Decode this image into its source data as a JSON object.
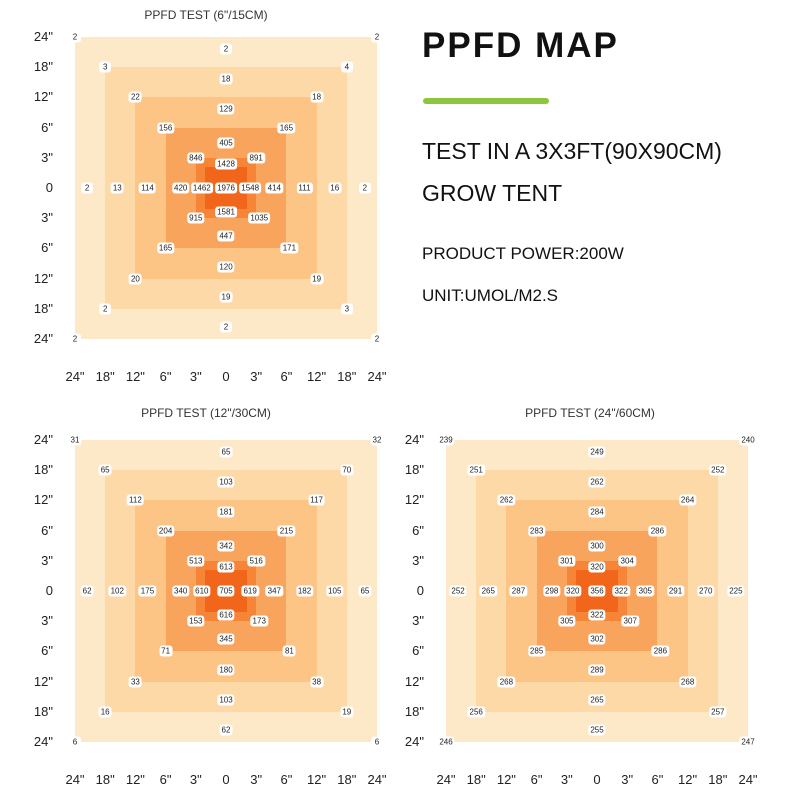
{
  "info": {
    "title": "PPFD MAP",
    "line1": "TEST IN A 3X3FT(90X90CM)",
    "line2": "GROW TENT",
    "line3": "PRODUCT POWER:200W",
    "line4": "UNIT:UMOL/M2.S"
  },
  "colors": {
    "rings": [
      "#fde9c8",
      "#fdd9a8",
      "#fcc485",
      "#f9a45d",
      "#f68537",
      "#f1661a"
    ],
    "accent": "#8cc63f"
  },
  "chart_data": [
    {
      "type": "heatmap",
      "title": "PPFD TEST (6\"/15CM)",
      "x_ticks": [
        "24\"",
        "18\"",
        "12\"",
        "6\"",
        "3\"",
        "0",
        "3\"",
        "6\"",
        "12\"",
        "18\"",
        "24\""
      ],
      "y_ticks": [
        "24\"",
        "18\"",
        "12\"",
        "6\"",
        "3\"",
        "0",
        "3\"",
        "6\"",
        "12\"",
        "18\"",
        "24\""
      ],
      "points": [
        {
          "x": 0,
          "y": 0,
          "v": "2"
        },
        {
          "x": 10,
          "y": 0,
          "v": "2"
        },
        {
          "x": 5,
          "y": 0.4,
          "v": "2"
        },
        {
          "x": 1,
          "y": 1,
          "v": "3"
        },
        {
          "x": 9,
          "y": 1,
          "v": "4"
        },
        {
          "x": 5,
          "y": 1.4,
          "v": "18"
        },
        {
          "x": 2,
          "y": 2,
          "v": "22"
        },
        {
          "x": 8,
          "y": 2,
          "v": "18"
        },
        {
          "x": 5,
          "y": 2.4,
          "v": "129"
        },
        {
          "x": 3,
          "y": 3,
          "v": "156"
        },
        {
          "x": 7,
          "y": 3,
          "v": "165"
        },
        {
          "x": 5,
          "y": 3.5,
          "v": "405"
        },
        {
          "x": 4,
          "y": 4,
          "v": "846"
        },
        {
          "x": 5,
          "y": 4.2,
          "v": "1428"
        },
        {
          "x": 6,
          "y": 4,
          "v": "891"
        },
        {
          "x": 0.4,
          "y": 5,
          "v": "2"
        },
        {
          "x": 1.4,
          "y": 5,
          "v": "13"
        },
        {
          "x": 2.4,
          "y": 5,
          "v": "114"
        },
        {
          "x": 3.5,
          "y": 5,
          "v": "420"
        },
        {
          "x": 4.2,
          "y": 5,
          "v": "1462"
        },
        {
          "x": 5,
          "y": 5,
          "v": "1976"
        },
        {
          "x": 5.8,
          "y": 5,
          "v": "1548"
        },
        {
          "x": 6.6,
          "y": 5,
          "v": "414"
        },
        {
          "x": 7.6,
          "y": 5,
          "v": "111"
        },
        {
          "x": 8.6,
          "y": 5,
          "v": "16"
        },
        {
          "x": 9.6,
          "y": 5,
          "v": "2"
        },
        {
          "x": 4,
          "y": 6,
          "v": "915"
        },
        {
          "x": 5,
          "y": 5.8,
          "v": "1581"
        },
        {
          "x": 6.1,
          "y": 6,
          "v": "1035"
        },
        {
          "x": 5,
          "y": 6.6,
          "v": "447"
        },
        {
          "x": 3,
          "y": 7,
          "v": "165"
        },
        {
          "x": 7.1,
          "y": 7,
          "v": "171"
        },
        {
          "x": 5,
          "y": 7.6,
          "v": "120"
        },
        {
          "x": 2,
          "y": 8,
          "v": "20"
        },
        {
          "x": 8,
          "y": 8,
          "v": "19"
        },
        {
          "x": 5,
          "y": 8.6,
          "v": "19"
        },
        {
          "x": 1,
          "y": 9,
          "v": "2"
        },
        {
          "x": 9,
          "y": 9,
          "v": "3"
        },
        {
          "x": 5,
          "y": 9.6,
          "v": "2"
        },
        {
          "x": 0,
          "y": 10,
          "v": "2"
        },
        {
          "x": 10,
          "y": 10,
          "v": "2"
        }
      ]
    },
    {
      "type": "heatmap",
      "title": "PPFD TEST (12\"/30CM)",
      "x_ticks": [
        "24\"",
        "18\"",
        "12\"",
        "6\"",
        "3\"",
        "0",
        "3\"",
        "6\"",
        "12\"",
        "18\"",
        "24\""
      ],
      "y_ticks": [
        "24\"",
        "18\"",
        "12\"",
        "6\"",
        "3\"",
        "0",
        "3\"",
        "6\"",
        "12\"",
        "18\"",
        "24\""
      ],
      "points": [
        {
          "x": 0,
          "y": 0,
          "v": "31"
        },
        {
          "x": 10,
          "y": 0,
          "v": "32"
        },
        {
          "x": 5,
          "y": 0.4,
          "v": "65"
        },
        {
          "x": 1,
          "y": 1,
          "v": "65"
        },
        {
          "x": 9,
          "y": 1,
          "v": "70"
        },
        {
          "x": 5,
          "y": 1.4,
          "v": "103"
        },
        {
          "x": 2,
          "y": 2,
          "v": "112"
        },
        {
          "x": 8,
          "y": 2,
          "v": "117"
        },
        {
          "x": 5,
          "y": 2.4,
          "v": "181"
        },
        {
          "x": 3,
          "y": 3,
          "v": "204"
        },
        {
          "x": 7,
          "y": 3,
          "v": "215"
        },
        {
          "x": 5,
          "y": 3.5,
          "v": "342"
        },
        {
          "x": 4,
          "y": 4,
          "v": "513"
        },
        {
          "x": 5,
          "y": 4.2,
          "v": "613"
        },
        {
          "x": 6,
          "y": 4,
          "v": "516"
        },
        {
          "x": 0.4,
          "y": 5,
          "v": "62"
        },
        {
          "x": 1.4,
          "y": 5,
          "v": "102"
        },
        {
          "x": 2.4,
          "y": 5,
          "v": "175"
        },
        {
          "x": 3.5,
          "y": 5,
          "v": "340"
        },
        {
          "x": 4.2,
          "y": 5,
          "v": "610"
        },
        {
          "x": 5,
          "y": 5,
          "v": "705"
        },
        {
          "x": 5.8,
          "y": 5,
          "v": "619"
        },
        {
          "x": 6.6,
          "y": 5,
          "v": "347"
        },
        {
          "x": 7.6,
          "y": 5,
          "v": "182"
        },
        {
          "x": 8.6,
          "y": 5,
          "v": "105"
        },
        {
          "x": 9.6,
          "y": 5,
          "v": "65"
        },
        {
          "x": 4,
          "y": 6,
          "v": "153"
        },
        {
          "x": 5,
          "y": 5.8,
          "v": "616"
        },
        {
          "x": 6.1,
          "y": 6,
          "v": "173"
        },
        {
          "x": 5,
          "y": 6.6,
          "v": "345"
        },
        {
          "x": 3,
          "y": 7,
          "v": "71"
        },
        {
          "x": 7.1,
          "y": 7,
          "v": "81"
        },
        {
          "x": 5,
          "y": 7.6,
          "v": "180"
        },
        {
          "x": 2,
          "y": 8,
          "v": "33"
        },
        {
          "x": 8,
          "y": 8,
          "v": "38"
        },
        {
          "x": 5,
          "y": 8.6,
          "v": "103"
        },
        {
          "x": 1,
          "y": 9,
          "v": "16"
        },
        {
          "x": 9,
          "y": 9,
          "v": "19"
        },
        {
          "x": 5,
          "y": 9.6,
          "v": "62"
        },
        {
          "x": 0,
          "y": 10,
          "v": "6"
        },
        {
          "x": 10,
          "y": 10,
          "v": "6"
        }
      ]
    },
    {
      "type": "heatmap",
      "title": "PPFD TEST (24\"/60CM)",
      "x_ticks": [
        "24\"",
        "18\"",
        "12\"",
        "6\"",
        "3\"",
        "0",
        "3\"",
        "6\"",
        "12\"",
        "18\"",
        "24\""
      ],
      "y_ticks": [
        "24\"",
        "18\"",
        "12\"",
        "6\"",
        "3\"",
        "0",
        "3\"",
        "6\"",
        "12\"",
        "18\"",
        "24\""
      ],
      "points": [
        {
          "x": 0,
          "y": 0,
          "v": "239"
        },
        {
          "x": 10,
          "y": 0,
          "v": "240"
        },
        {
          "x": 5,
          "y": 0.4,
          "v": "249"
        },
        {
          "x": 1,
          "y": 1,
          "v": "251"
        },
        {
          "x": 9,
          "y": 1,
          "v": "252"
        },
        {
          "x": 5,
          "y": 1.4,
          "v": "262"
        },
        {
          "x": 2,
          "y": 2,
          "v": "262"
        },
        {
          "x": 8,
          "y": 2,
          "v": "264"
        },
        {
          "x": 5,
          "y": 2.4,
          "v": "284"
        },
        {
          "x": 3,
          "y": 3,
          "v": "283"
        },
        {
          "x": 7,
          "y": 3,
          "v": "286"
        },
        {
          "x": 5,
          "y": 3.5,
          "v": "300"
        },
        {
          "x": 4,
          "y": 4,
          "v": "301"
        },
        {
          "x": 5,
          "y": 4.2,
          "v": "320"
        },
        {
          "x": 6,
          "y": 4,
          "v": "304"
        },
        {
          "x": 0.4,
          "y": 5,
          "v": "252"
        },
        {
          "x": 1.4,
          "y": 5,
          "v": "265"
        },
        {
          "x": 2.4,
          "y": 5,
          "v": "287"
        },
        {
          "x": 3.5,
          "y": 5,
          "v": "298"
        },
        {
          "x": 4.2,
          "y": 5,
          "v": "320"
        },
        {
          "x": 5,
          "y": 5,
          "v": "356"
        },
        {
          "x": 5.8,
          "y": 5,
          "v": "322"
        },
        {
          "x": 6.6,
          "y": 5,
          "v": "305"
        },
        {
          "x": 7.6,
          "y": 5,
          "v": "291"
        },
        {
          "x": 8.6,
          "y": 5,
          "v": "270"
        },
        {
          "x": 9.6,
          "y": 5,
          "v": "225"
        },
        {
          "x": 4,
          "y": 6,
          "v": "305"
        },
        {
          "x": 5,
          "y": 5.8,
          "v": "322"
        },
        {
          "x": 6.1,
          "y": 6,
          "v": "307"
        },
        {
          "x": 5,
          "y": 6.6,
          "v": "302"
        },
        {
          "x": 3,
          "y": 7,
          "v": "285"
        },
        {
          "x": 7.1,
          "y": 7,
          "v": "286"
        },
        {
          "x": 5,
          "y": 7.6,
          "v": "289"
        },
        {
          "x": 2,
          "y": 8,
          "v": "268"
        },
        {
          "x": 8,
          "y": 8,
          "v": "268"
        },
        {
          "x": 5,
          "y": 8.6,
          "v": "265"
        },
        {
          "x": 1,
          "y": 9,
          "v": "256"
        },
        {
          "x": 9,
          "y": 9,
          "v": "257"
        },
        {
          "x": 5,
          "y": 9.6,
          "v": "255"
        },
        {
          "x": 0,
          "y": 10,
          "v": "246"
        },
        {
          "x": 10,
          "y": 10,
          "v": "247"
        }
      ]
    }
  ]
}
